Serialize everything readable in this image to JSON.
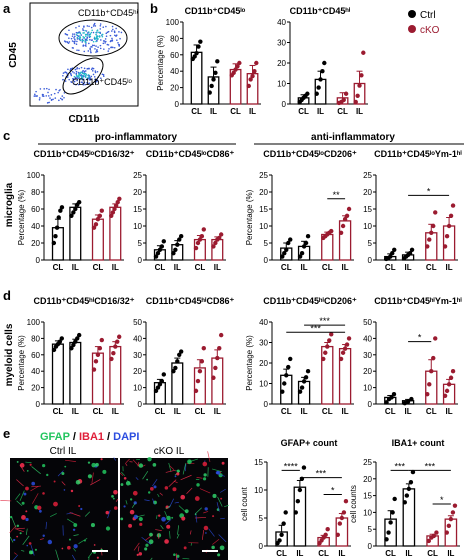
{
  "panel_letters": {
    "a": "a",
    "b": "b",
    "c": "c",
    "d": "d",
    "e": "e"
  },
  "colors": {
    "ctrl": "#000000",
    "cko": "#9b1b30",
    "gfap": "#22c55e",
    "iba1": "#e0203a",
    "dapi": "#2b4de0"
  },
  "flow": {
    "y_label": "CD45",
    "x_label": "CD11b",
    "gate_hi": "CD11b⁺CD45ʰⁱ",
    "gate_lo": "CD11b⁺CD45ˡᵒ"
  },
  "legend": {
    "ctrl": "Ctrl",
    "cko": "cKO"
  },
  "section": {
    "pro": "pro-inflammatory",
    "anti": "anti-inflammatory"
  },
  "row_labels": {
    "c": "microglia",
    "d": "myeloid cells"
  },
  "xcats": [
    "CL",
    "IL",
    "CL",
    "IL"
  ],
  "panel_e": {
    "stain_gfap": "GFAP",
    "stain_sep1": " / ",
    "stain_iba1": "IBA1",
    "stain_sep2": " / ",
    "stain_dapi": "DAPI",
    "img_ctrl": "Ctrl IL",
    "img_cko": "cKO IL"
  },
  "chart_data": [
    {
      "id": "b1",
      "type": "bar",
      "title": "CD11b⁺CD45ˡᵒ",
      "ylabel": "Percentage (%)",
      "ylim": [
        0,
        100
      ],
      "yticks": [
        "0",
        "20",
        "40",
        "60",
        "80",
        "100"
      ],
      "categories": [
        "CL",
        "IL",
        "CL",
        "IL"
      ],
      "group": [
        "ctrl",
        "ctrl",
        "cko",
        "cko"
      ],
      "values": [
        63,
        33,
        42,
        37
      ],
      "errors": [
        9,
        12,
        7,
        10
      ],
      "points": [
        [
          55,
          58,
          62,
          70,
          76
        ],
        [
          14,
          22,
          30,
          38,
          52
        ],
        [
          35,
          38,
          42,
          46,
          50
        ],
        [
          22,
          30,
          34,
          40,
          50
        ]
      ],
      "sig": []
    },
    {
      "id": "b2",
      "type": "bar",
      "title": "CD11b⁺CD45ʰⁱ",
      "ylabel": "",
      "ylim": [
        0,
        40
      ],
      "yticks": [
        "0",
        "10",
        "20",
        "30",
        "40"
      ],
      "categories": [
        "CL",
        "IL",
        "CL",
        "IL"
      ],
      "group": [
        "ctrl",
        "ctrl",
        "cko",
        "cko"
      ],
      "values": [
        3,
        12,
        3,
        10
      ],
      "errors": [
        1.5,
        4,
        2.5,
        6
      ],
      "points": [
        [
          1,
          2,
          3,
          4,
          5
        ],
        [
          5,
          8,
          12,
          16,
          20
        ],
        [
          0.5,
          1,
          2,
          5
        ],
        [
          1,
          4,
          9,
          14,
          25
        ]
      ],
      "sig": []
    },
    {
      "id": "c1",
      "type": "bar",
      "title": "CD11b⁺CD45ˡᵒCD16/32⁺",
      "ylabel": "Percentage (%)",
      "ylim": [
        0,
        100
      ],
      "yticks": [
        "0",
        "20",
        "40",
        "60",
        "80",
        "100"
      ],
      "categories": [
        "CL",
        "IL",
        "CL",
        "IL"
      ],
      "group": [
        "ctrl",
        "ctrl",
        "cko",
        "cko"
      ],
      "values": [
        38,
        62,
        48,
        62
      ],
      "errors": [
        10,
        4,
        5,
        4
      ],
      "points": [
        [
          20,
          28,
          38,
          50,
          58,
          62
        ],
        [
          52,
          56,
          60,
          65,
          68
        ],
        [
          38,
          42,
          48,
          52,
          58
        ],
        [
          52,
          56,
          60,
          64,
          68,
          72
        ]
      ],
      "sig": []
    },
    {
      "id": "c2",
      "type": "bar",
      "title": "CD11b⁺CD45ˡᵒCD86⁺",
      "ylabel": "",
      "ylim": [
        0,
        25
      ],
      "yticks": [
        "0",
        "5",
        "10",
        "15",
        "20",
        "25"
      ],
      "categories": [
        "CL",
        "IL",
        "CL",
        "IL"
      ],
      "group": [
        "ctrl",
        "ctrl",
        "cko",
        "cko"
      ],
      "values": [
        3,
        4.5,
        6,
        6
      ],
      "errors": [
        1.2,
        1.2,
        1.2,
        0.8
      ],
      "points": [
        [
          1,
          2,
          3,
          4,
          5.5
        ],
        [
          2,
          3,
          4.5,
          6,
          7
        ],
        [
          3.5,
          5,
          6,
          7,
          9
        ],
        [
          4,
          5,
          6,
          6.5,
          7.5
        ]
      ],
      "sig": []
    },
    {
      "id": "c3",
      "type": "bar",
      "title": "CD11b⁺CD45ˡᵒCD206⁺",
      "ylabel": "Percentage (%)",
      "ylim": [
        0,
        25
      ],
      "yticks": [
        "0",
        "5",
        "10",
        "15",
        "20",
        "25"
      ],
      "categories": [
        "CL",
        "IL",
        "CL",
        "IL"
      ],
      "group": [
        "ctrl",
        "ctrl",
        "cko",
        "cko"
      ],
      "values": [
        3.5,
        4,
        7.5,
        11.5
      ],
      "errors": [
        1.5,
        1.5,
        0.7,
        1.5
      ],
      "points": [
        [
          1,
          2,
          3,
          5,
          6
        ],
        [
          1,
          2,
          4,
          5,
          7
        ],
        [
          6.5,
          7,
          7.5,
          8,
          8.5
        ],
        [
          8,
          10,
          12,
          13,
          15
        ]
      ],
      "sig": [
        {
          "x1": 2,
          "x2": 3,
          "y": 18,
          "label": "**"
        }
      ]
    },
    {
      "id": "c4",
      "type": "bar",
      "title": "CD11b⁺CD45ˡᵒYm-1ʰⁱ",
      "ylabel": "",
      "ylim": [
        0,
        25
      ],
      "yticks": [
        "0",
        "5",
        "10",
        "15",
        "20",
        "25"
      ],
      "categories": [
        "CL",
        "IL",
        "CL",
        "IL"
      ],
      "group": [
        "ctrl",
        "ctrl",
        "cko",
        "cko"
      ],
      "values": [
        1,
        1.5,
        8,
        10
      ],
      "errors": [
        0.8,
        0.8,
        2.5,
        2.5
      ],
      "points": [
        [
          0.3,
          0.5,
          1,
          2,
          3
        ],
        [
          0.5,
          1,
          1.5,
          2,
          3
        ],
        [
          4,
          6,
          8,
          10,
          14
        ],
        [
          4,
          7,
          10,
          13,
          16
        ]
      ],
      "sig": [
        {
          "x1": 1,
          "x2": 3,
          "y": 19,
          "label": "*"
        }
      ]
    },
    {
      "id": "d1",
      "type": "bar",
      "title": "CD11b⁺CD45ʰⁱCD16/32⁺",
      "ylabel": "Percentage (%)",
      "ylim": [
        0,
        100
      ],
      "yticks": [
        "0",
        "20",
        "40",
        "60",
        "80",
        "100"
      ],
      "categories": [
        "CL",
        "IL",
        "CL",
        "IL"
      ],
      "group": [
        "ctrl",
        "ctrl",
        "cko",
        "cko"
      ],
      "values": [
        73,
        75,
        62,
        70
      ],
      "errors": [
        4,
        4,
        8,
        6
      ],
      "points": [
        [
          66,
          70,
          73,
          76,
          80
        ],
        [
          68,
          72,
          76,
          80,
          84
        ],
        [
          42,
          52,
          60,
          68,
          78
        ],
        [
          55,
          62,
          70,
          76,
          82
        ]
      ],
      "sig": []
    },
    {
      "id": "d2",
      "type": "bar",
      "title": "CD11b⁺CD45ʰⁱCD86⁺",
      "ylabel": "",
      "ylim": [
        0,
        50
      ],
      "yticks": [
        "0",
        "10",
        "20",
        "30",
        "40",
        "50"
      ],
      "categories": [
        "CL",
        "IL",
        "CL",
        "IL"
      ],
      "group": [
        "ctrl",
        "ctrl",
        "cko",
        "cko"
      ],
      "values": [
        13,
        25,
        22,
        28
      ],
      "errors": [
        2,
        3,
        5,
        5
      ],
      "points": [
        [
          8,
          10,
          12,
          14,
          18
        ],
        [
          20,
          22,
          26,
          30,
          32
        ],
        [
          8,
          14,
          20,
          26,
          34
        ],
        [
          16,
          22,
          28,
          34,
          42
        ]
      ],
      "sig": []
    },
    {
      "id": "d3",
      "type": "bar",
      "title": "CD11b⁺CD45ʰⁱCD206⁺",
      "ylabel": "Percentage (%)",
      "ylim": [
        0,
        40
      ],
      "yticks": [
        "0",
        "10",
        "20",
        "30",
        "40"
      ],
      "categories": [
        "CL",
        "IL",
        "CL",
        "IL"
      ],
      "group": [
        "ctrl",
        "ctrl",
        "cko",
        "cko"
      ],
      "values": [
        14,
        11,
        28,
        27
      ],
      "errors": [
        3,
        2,
        2,
        2
      ],
      "points": [
        [
          6,
          10,
          14,
          18,
          22
        ],
        [
          6,
          8,
          11,
          13,
          16
        ],
        [
          22,
          25,
          28,
          31,
          34
        ],
        [
          22,
          25,
          27,
          29,
          32
        ]
      ],
      "sig": [
        {
          "x1": 0,
          "x2": 3,
          "y": 35,
          "label": "***"
        },
        {
          "x1": 1,
          "x2": 3,
          "y": 38.5,
          "label": "***"
        }
      ]
    },
    {
      "id": "d4",
      "type": "bar",
      "title": "CD11b⁺CD45ʰⁱYm-1ʰⁱ",
      "ylabel": "",
      "ylim": [
        0,
        50
      ],
      "yticks": [
        "0",
        "10",
        "20",
        "30",
        "40",
        "50"
      ],
      "categories": [
        "CL",
        "IL",
        "CL",
        "IL"
      ],
      "group": [
        "ctrl",
        "ctrl",
        "cko",
        "cko"
      ],
      "values": [
        4,
        2,
        20,
        12
      ],
      "errors": [
        1.2,
        0.8,
        7,
        3
      ],
      "points": [
        [
          1,
          3,
          4,
          6
        ],
        [
          0.5,
          1.5,
          3
        ],
        [
          6,
          12,
          20,
          28,
          40
        ],
        [
          5,
          8,
          12,
          16,
          20
        ]
      ],
      "sig": [
        {
          "x1": 1,
          "x2": 2,
          "y": 38,
          "label": "*"
        }
      ]
    },
    {
      "id": "e1",
      "type": "bar",
      "title": "GFAP+ count",
      "ylabel": "cell count",
      "ylim": [
        0,
        15
      ],
      "yticks": [
        "0",
        "5",
        "10",
        "15"
      ],
      "categories": [
        "CL",
        "IL",
        "CL",
        "IL"
      ],
      "group": [
        "ctrl",
        "ctrl",
        "cko",
        "cko"
      ],
      "values": [
        2.5,
        10.5,
        1.5,
        5
      ],
      "errors": [
        1.2,
        1.2,
        0.4,
        0.8
      ],
      "points": [
        [
          0.5,
          1,
          2,
          4,
          6
        ],
        [
          6,
          8,
          10,
          12,
          14
        ],
        [
          0.5,
          1,
          1.5,
          2,
          3
        ],
        [
          2,
          4,
          5,
          6,
          8
        ]
      ],
      "sig": [
        {
          "x1": 0,
          "x2": 1,
          "y": 13.5,
          "label": "****"
        },
        {
          "x1": 1,
          "x2": 3,
          "y": 12.2,
          "label": "***"
        },
        {
          "x1": 2,
          "x2": 3,
          "y": 9.2,
          "label": "*"
        }
      ]
    },
    {
      "id": "e2",
      "type": "bar",
      "title": "IBA1+ count",
      "ylabel": "cell counts",
      "ylim": [
        0,
        25
      ],
      "yticks": [
        "0",
        "5",
        "10",
        "15",
        "20",
        "25"
      ],
      "categories": [
        "CL",
        "IL",
        "CL",
        "IL"
      ],
      "group": [
        "ctrl",
        "ctrl",
        "cko",
        "cko"
      ],
      "values": [
        8,
        17,
        3,
        8
      ],
      "errors": [
        2.5,
        1.5,
        0.5,
        1
      ],
      "points": [
        [
          2,
          4,
          7,
          10,
          14
        ],
        [
          13,
          15,
          17,
          19,
          22
        ],
        [
          1.5,
          2.5,
          3,
          4
        ],
        [
          4,
          6,
          8,
          10,
          12
        ]
      ],
      "sig": [
        {
          "x1": 0,
          "x2": 1,
          "y": 22.5,
          "label": "***"
        },
        {
          "x1": 1,
          "x2": 3,
          "y": 22.5,
          "label": "***"
        },
        {
          "x1": 2,
          "x2": 3,
          "y": 12.5,
          "label": "*"
        }
      ]
    }
  ]
}
